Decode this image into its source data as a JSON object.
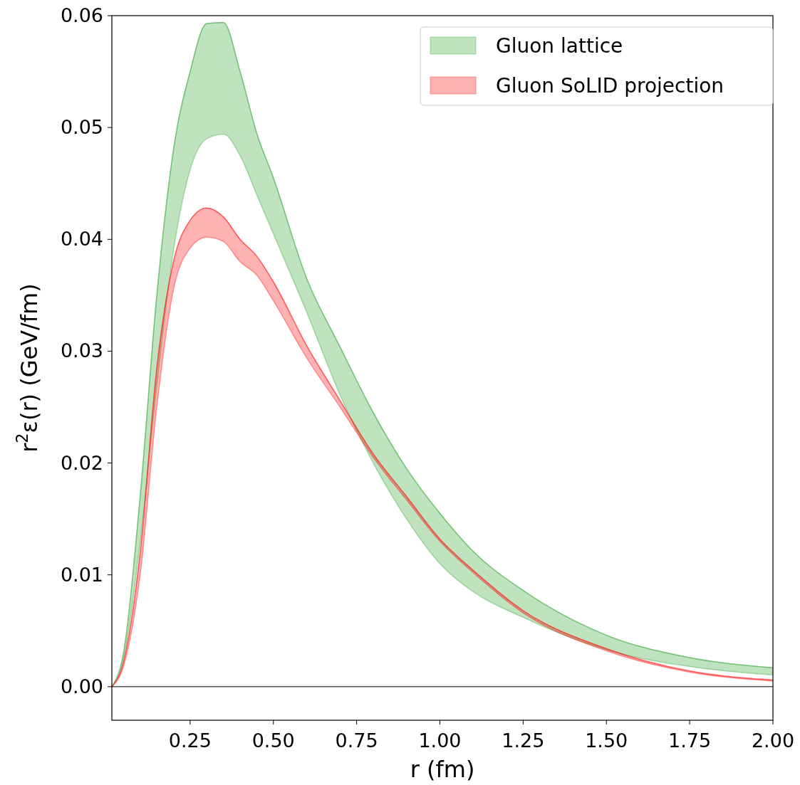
{
  "chart_data": {
    "type": "line",
    "xlabel": "r (fm)",
    "ylabel": "r$^{2}$ε(r) (GeV/fm)",
    "x": [
      0.015,
      0.05,
      0.1,
      0.15,
      0.2,
      0.25,
      0.3,
      0.35,
      0.4,
      0.45,
      0.5,
      0.6,
      0.7,
      0.8,
      0.9,
      1.0,
      1.1,
      1.25,
      1.5,
      1.75,
      2.0
    ],
    "series": [
      {
        "name": "Gluon lattice",
        "color": "#2ca02c",
        "values": [
          0,
          0.003,
          0.017,
          0.035,
          0.048,
          0.055,
          0.0593,
          0.0594,
          0.055,
          0.0495,
          0.0455,
          0.0365,
          0.0304,
          0.0245,
          0.0195,
          0.0155,
          0.0121,
          0.0086,
          0.0046,
          0.0026,
          0.0017
        ],
        "upper": [
          0,
          0.003,
          0.017,
          0.035,
          0.048,
          0.055,
          0.0593,
          0.0594,
          0.055,
          0.0495,
          0.0455,
          0.0365,
          0.0304,
          0.0245,
          0.0195,
          0.0155,
          0.0121,
          0.0086,
          0.0046,
          0.0026,
          0.0017
        ],
        "lower": [
          0,
          0.0025,
          0.013,
          0.027,
          0.039,
          0.0462,
          0.049,
          0.0494,
          0.0475,
          0.044,
          0.0405,
          0.0335,
          0.0261,
          0.02,
          0.015,
          0.011,
          0.0085,
          0.0062,
          0.0033,
          0.0018,
          0.00105
        ]
      },
      {
        "name": "Gluon SoLID projection",
        "color": "#ff0000",
        "values": [
          0,
          0.0022,
          0.012,
          0.0285,
          0.038,
          0.0417,
          0.0428,
          0.042,
          0.04,
          0.0385,
          0.0362,
          0.0305,
          0.0256,
          0.0208,
          0.017,
          0.0132,
          0.0104,
          0.0068,
          0.0034,
          0.0014,
          0.0006
        ],
        "upper": [
          0,
          0.0022,
          0.012,
          0.0285,
          0.038,
          0.0417,
          0.0428,
          0.042,
          0.04,
          0.0385,
          0.0362,
          0.0305,
          0.0256,
          0.0208,
          0.017,
          0.0132,
          0.0104,
          0.0068,
          0.0034,
          0.0014,
          0.0006
        ],
        "lower": [
          0,
          0.0018,
          0.01,
          0.025,
          0.0355,
          0.0392,
          0.0402,
          0.0398,
          0.038,
          0.0368,
          0.0345,
          0.0294,
          0.025,
          0.0205,
          0.0167,
          0.013,
          0.0102,
          0.0066,
          0.0032,
          0.0013,
          0.0005
        ]
      }
    ],
    "xlim": [
      0.015,
      2.0
    ],
    "ylim": [
      -0.003,
      0.06
    ],
    "xticks": [
      0.25,
      {
        "value": 0.5,
        "label": "0.50"
      },
      0.75,
      {
        "value": 1.0,
        "label": "1.00"
      },
      1.25,
      {
        "value": 1.5,
        "label": "1.50"
      },
      1.75,
      {
        "value": 2.0,
        "label": "2.00"
      }
    ],
    "yticks": [
      {
        "value": 0,
        "label": "0.00"
      },
      0.01,
      0.02,
      0.03,
      0.04,
      0.05,
      0.06
    ],
    "ref_lines": [
      {
        "axis": "y",
        "value": 0,
        "color": "#000000"
      }
    ],
    "legend": "top right",
    "grid": false
  }
}
